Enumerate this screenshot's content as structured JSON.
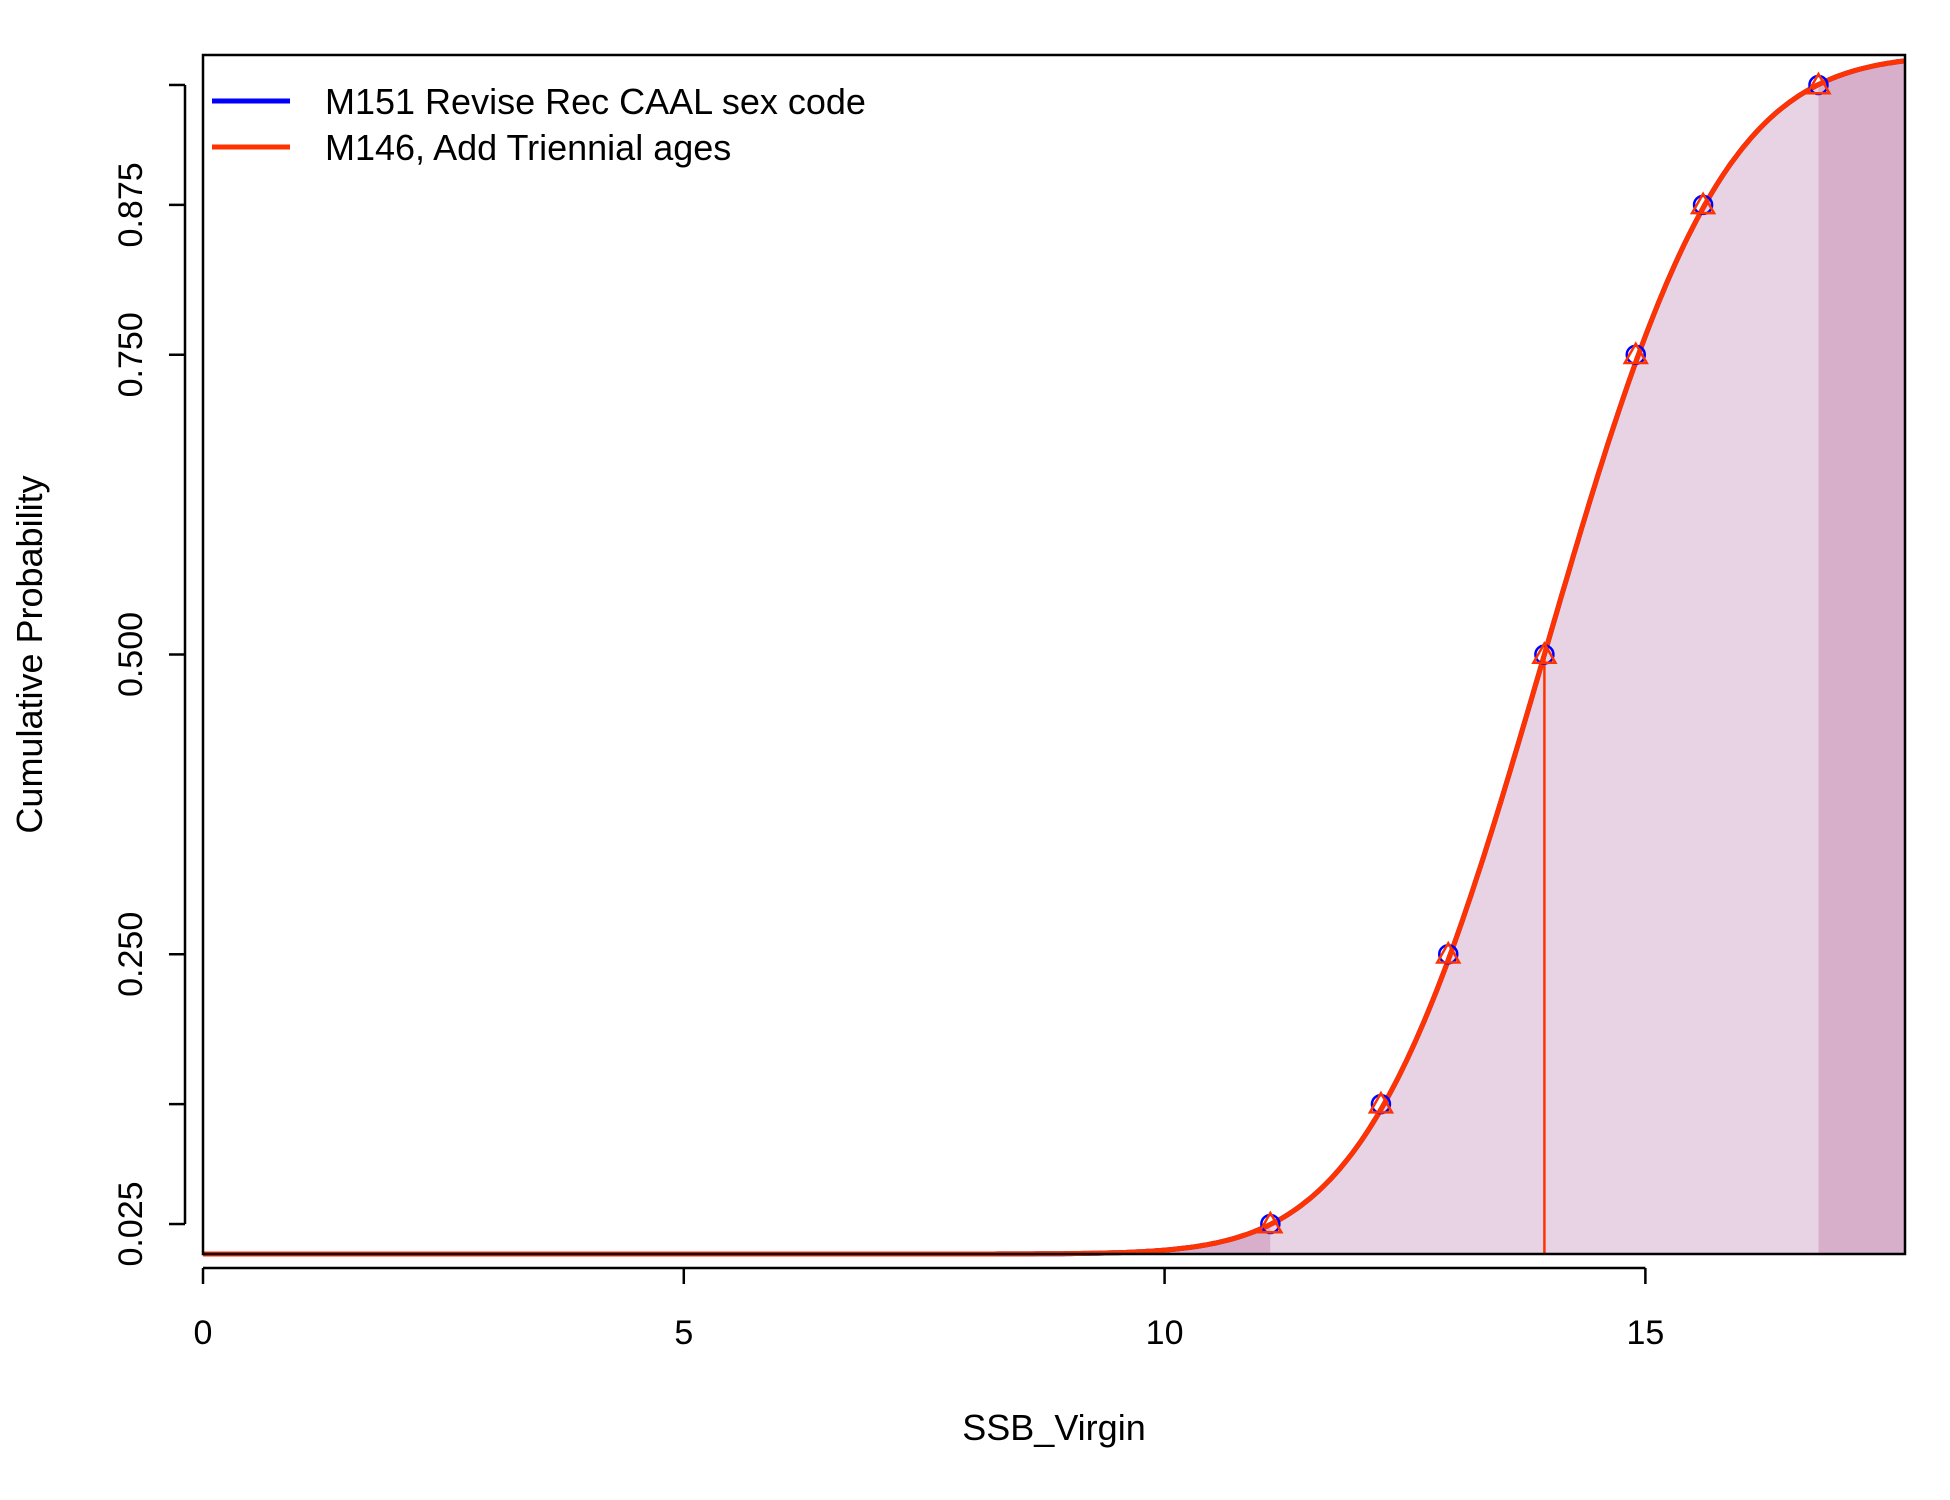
{
  "chart_data": {
    "type": "line",
    "xlabel": "SSB_Virgin",
    "ylabel": "Cumulative Probability",
    "xlim": [
      0,
      17.7
    ],
    "ylim": [
      0,
      1
    ],
    "x_ticks": [
      0,
      5,
      10,
      15
    ],
    "x_tick_labels": [
      "0",
      "5",
      "10",
      "15"
    ],
    "y_ticks": [
      0.025,
      0.25,
      0.5,
      0.75,
      0.875
    ],
    "y_tick_labels": [
      "0.025",
      "0.250",
      "0.500",
      "0.750",
      "0.875"
    ],
    "legend": {
      "position": "top-left"
    },
    "curve": {
      "mean": 13.95,
      "sd": 1.45
    },
    "median": 13.95,
    "shaded_region": {
      "from": 11.1,
      "to": 16.8,
      "color": "#E8D3E4"
    },
    "outer_shading": {
      "color": "#D7AFCB"
    },
    "series": [
      {
        "name": "M151 Revise Rec CAAL sex code",
        "color": "#0000FF",
        "marker": "circle",
        "quantiles": [
          {
            "x": 11.1,
            "y": 0.025
          },
          {
            "x": 12.25,
            "y": 0.125
          },
          {
            "x": 12.95,
            "y": 0.25
          },
          {
            "x": 13.95,
            "y": 0.5
          },
          {
            "x": 14.9,
            "y": 0.75
          },
          {
            "x": 15.6,
            "y": 0.875
          },
          {
            "x": 16.8,
            "y": 0.975
          }
        ]
      },
      {
        "name": "M146, Add Triennial ages",
        "color": "#FF3300",
        "marker": "triangle",
        "quantiles": [
          {
            "x": 11.1,
            "y": 0.025
          },
          {
            "x": 12.25,
            "y": 0.125
          },
          {
            "x": 12.95,
            "y": 0.25
          },
          {
            "x": 13.95,
            "y": 0.5
          },
          {
            "x": 14.9,
            "y": 0.75
          },
          {
            "x": 15.6,
            "y": 0.875
          },
          {
            "x": 16.8,
            "y": 0.975
          }
        ]
      }
    ]
  }
}
